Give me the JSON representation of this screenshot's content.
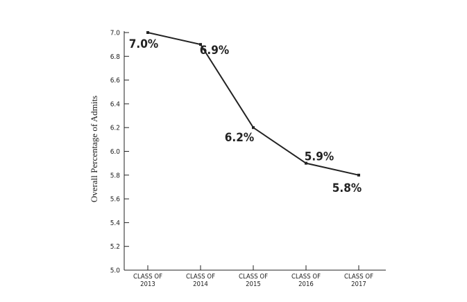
{
  "chart_data": {
    "type": "line",
    "title": "",
    "xlabel": "",
    "ylabel": "Overall Percentage of Admits",
    "ylim": [
      5.0,
      7.0
    ],
    "yticks": [
      "5.0",
      "5.2",
      "5.4",
      "5.6",
      "5.8",
      "6.0",
      "6.2",
      "6.4",
      "6.6",
      "6.8",
      "7.0"
    ],
    "categories": [
      [
        "CLASS OF",
        "2013"
      ],
      [
        "CLASS OF",
        "2014"
      ],
      [
        "CLASS OF",
        "2015"
      ],
      [
        "CLASS OF",
        "2016"
      ],
      [
        "CLASS OF",
        "2017"
      ]
    ],
    "series": [
      {
        "values": [
          7.0,
          6.9,
          6.2,
          5.9,
          5.8
        ],
        "labels": [
          "7.0%",
          "6.9%",
          "6.2%",
          "5.9%",
          "5.8%"
        ]
      }
    ],
    "grid": false,
    "color": "#222222"
  }
}
